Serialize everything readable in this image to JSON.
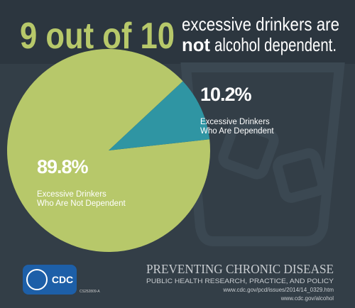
{
  "headline": {
    "lead": "9 out of 10",
    "line1": "excessive drinkers are",
    "emphasis": "not",
    "line2": "alcohol dependent."
  },
  "chart_data": {
    "type": "pie",
    "categories": [
      "Excessive Drinkers\nWho Are Not Dependent",
      "Excessive Drinkers\nWho Are Dependent"
    ],
    "values": [
      89.8,
      10.2
    ],
    "value_labels": [
      "89.8%",
      "10.2%"
    ],
    "colors": [
      "#b7c86a",
      "#2f95a3"
    ]
  },
  "footer": {
    "logo": "CDC",
    "code": "CS252809-A",
    "title": "PREVENTING CHRONIC DISEASE",
    "subtitle": "PUBLIC HEALTH RESEARCH, PRACTICE, AND POLICY",
    "url1": "www.cdc.gov/pcd/issues/2014/14_0329.htm",
    "url2": "www.cdc.gov/alcohol"
  }
}
